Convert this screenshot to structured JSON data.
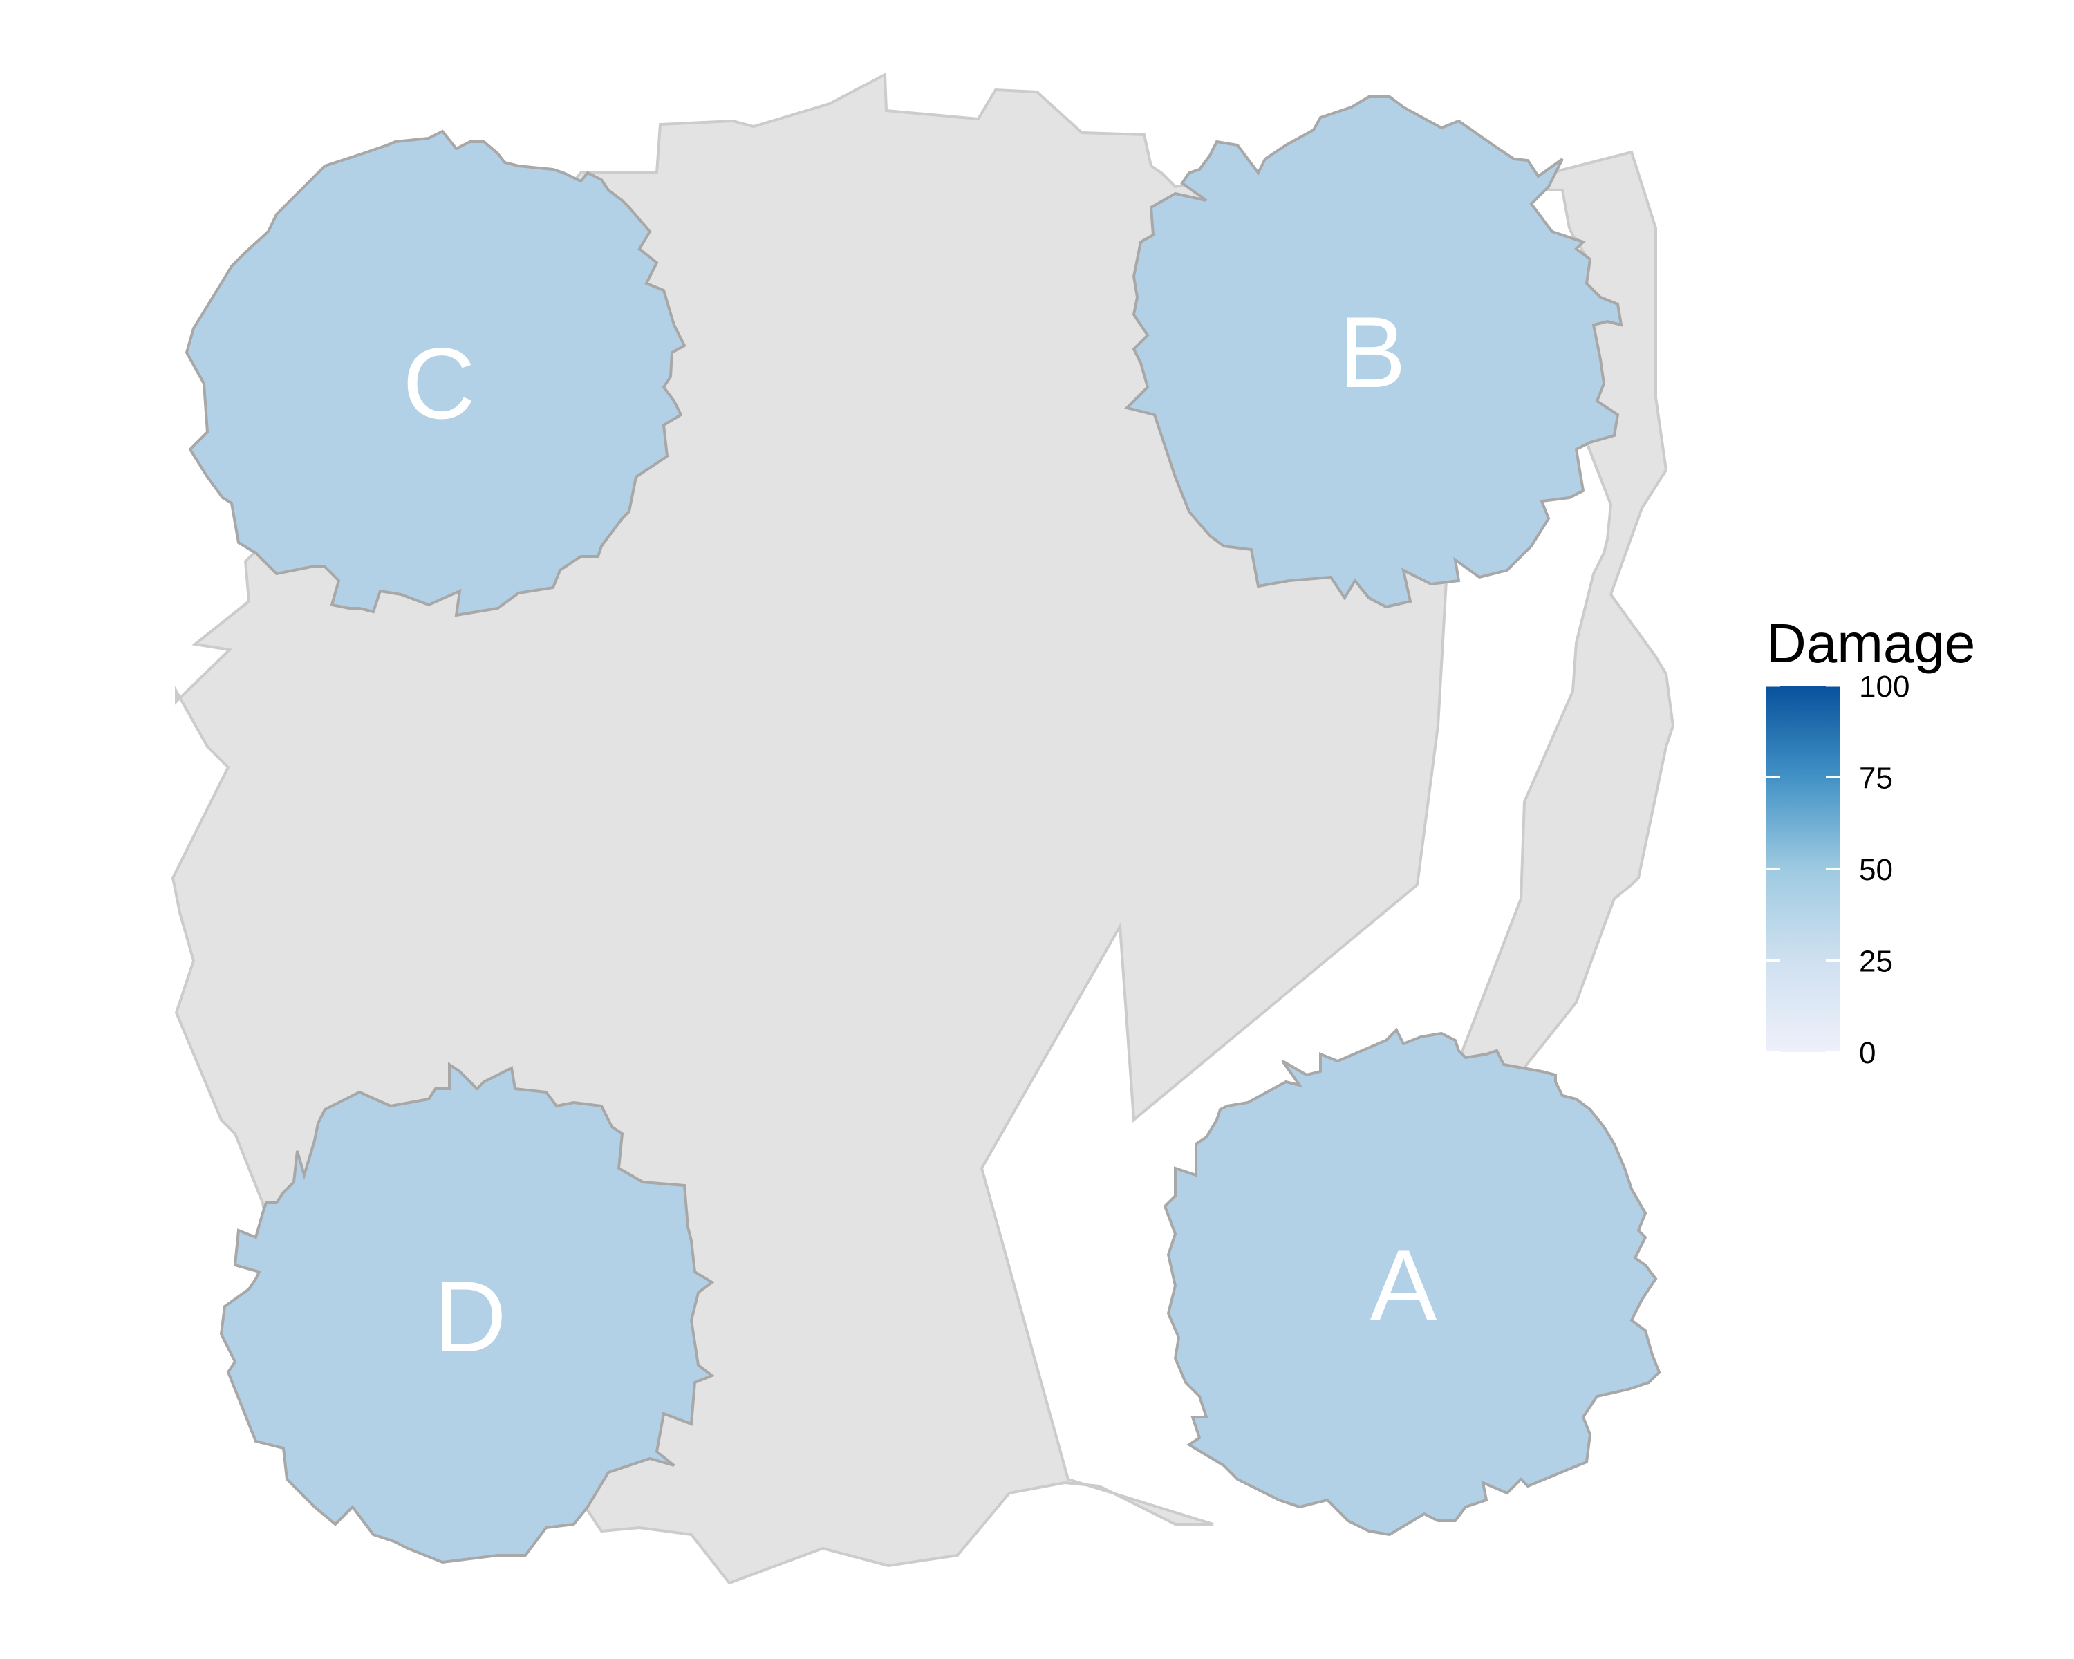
{
  "chart_data": {
    "type": "map",
    "title": "",
    "regions": [
      {
        "label": "A",
        "damage": 32
      },
      {
        "label": "B",
        "damage": 32
      },
      {
        "label": "C",
        "damage": 32
      },
      {
        "label": "D",
        "damage": 32
      }
    ],
    "legend": {
      "title": "Damage",
      "min": 0,
      "max": 100,
      "ticks": [
        0,
        25,
        50,
        75,
        100
      ],
      "tick_labels": [
        "0",
        "25",
        "50",
        "75",
        "100"
      ],
      "colors": [
        "#eef0fa",
        "#cfe0f0",
        "#9ecae1",
        "#4292c6",
        "#08519c"
      ],
      "placement": "right"
    },
    "background_region_color": "#e3e3e3",
    "region_fill_color": "#b3d1e6"
  }
}
